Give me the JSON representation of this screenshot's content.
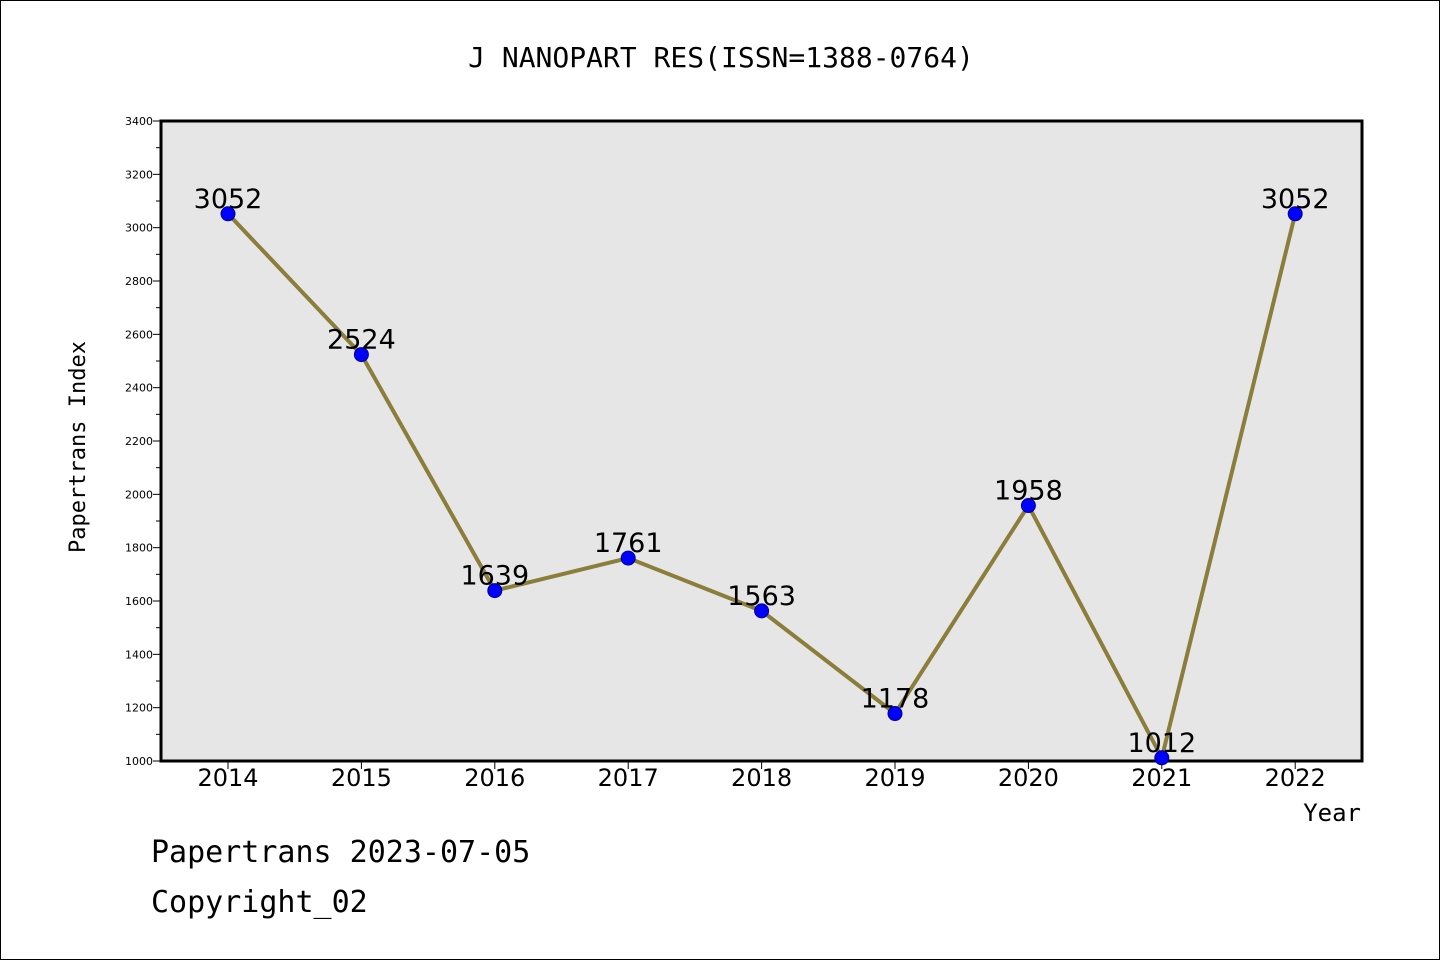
{
  "chart_data": {
    "type": "line",
    "title": "J NANOPART RES(ISSN=1388-0764)",
    "xlabel": "Year",
    "ylabel": "Papertrans Index",
    "categories": [
      "2014",
      "2015",
      "2016",
      "2017",
      "2018",
      "2019",
      "2020",
      "2021",
      "2022"
    ],
    "series": [
      {
        "values": [
          3052,
          2524,
          1639,
          1761,
          1563,
          1178,
          1958,
          1012,
          3052
        ],
        "data_labels": [
          "3052",
          "2524",
          "1639",
          "1761",
          "1563",
          "1178",
          "1958",
          "1012",
          "3052"
        ]
      }
    ],
    "ylim": [
      1000,
      3400
    ],
    "yticks": [
      1000,
      1200,
      1400,
      1600,
      1800,
      2000,
      2200,
      2400,
      2600,
      2800,
      3000,
      3200,
      3400
    ],
    "yticks_minor": [
      1100,
      1300,
      1500,
      1700,
      1900,
      2100,
      2300,
      2500,
      2700,
      2900,
      3100,
      3300
    ],
    "grid": false,
    "colors": {
      "line": "#8B7D3A",
      "marker_fill": "#0000FF",
      "marker_edge": "#00008B",
      "plot_background": "#E6E6E6"
    }
  },
  "footer": {
    "line1": "Papertrans 2023-07-05",
    "line2": "Copyright_02"
  }
}
